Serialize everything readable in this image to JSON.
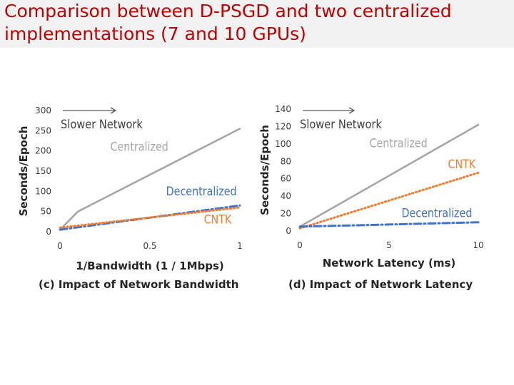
{
  "slide": {
    "title": "Comparison between D-PSGD and two centralized implementations (7 and 10 GPUs)"
  },
  "chart_data": [
    {
      "type": "line",
      "caption": "(c) Impact of Network Bandwidth",
      "xlabel": "1/Bandwidth (1 / 1Mbps)",
      "ylabel": "Seconds/Epoch",
      "xlim": [
        0,
        1
      ],
      "ylim": [
        0,
        300
      ],
      "xticks": [
        0,
        0.5,
        1
      ],
      "xtick_labels": [
        "0",
        "0.5",
        "1"
      ],
      "yticks": [
        0,
        50,
        100,
        150,
        200,
        250,
        300
      ],
      "annotation": "Slower Network",
      "series": [
        {
          "name": "Centralized",
          "color": "#a6a6a6",
          "dash": "solid",
          "x": [
            0,
            0.1,
            1
          ],
          "y": [
            5,
            50,
            255
          ]
        },
        {
          "name": "Decentralized",
          "color": "#4472c4",
          "dash": "dashdot",
          "x": [
            0,
            0.5,
            1
          ],
          "y": [
            5,
            35,
            65
          ]
        },
        {
          "name": "CNTK",
          "color": "#ed7d31",
          "dash": "dotted",
          "x": [
            0,
            0.5,
            1
          ],
          "y": [
            10,
            35,
            60
          ]
        }
      ],
      "labels": [
        {
          "text": "Centralized",
          "series": 0,
          "x": 0.28,
          "y": 200
        },
        {
          "text": "Decentralized",
          "series": 1,
          "x": 0.59,
          "y": 90
        },
        {
          "text": "CNTK",
          "series": 2,
          "x": 0.8,
          "y": 20
        }
      ]
    },
    {
      "type": "line",
      "caption": "(d) Impact of Network Latency",
      "xlabel": "Network Latency (ms)",
      "ylabel": "Seconds/Epoch",
      "xlim": [
        0,
        10
      ],
      "ylim": [
        0,
        140
      ],
      "xticks": [
        0,
        5,
        10
      ],
      "xtick_labels": [
        "0",
        "5",
        "10"
      ],
      "yticks": [
        0,
        20,
        40,
        60,
        80,
        100,
        120,
        140
      ],
      "annotation": "Slower Network",
      "series": [
        {
          "name": "Centralized",
          "color": "#a6a6a6",
          "dash": "solid",
          "x": [
            0,
            10
          ],
          "y": [
            5,
            122
          ]
        },
        {
          "name": "CNTK",
          "color": "#ed7d31",
          "dash": "dotted",
          "x": [
            0,
            10
          ],
          "y": [
            3,
            67
          ]
        },
        {
          "name": "Decentralized",
          "color": "#4472c4",
          "dash": "dashdot",
          "x": [
            0,
            10
          ],
          "y": [
            5,
            10
          ]
        }
      ],
      "labels": [
        {
          "text": "Centralized",
          "series": 0,
          "x": 3.9,
          "y": 96
        },
        {
          "text": "CNTK",
          "series": 1,
          "x": 8.3,
          "y": 72
        },
        {
          "text": "Decentralized",
          "series": 2,
          "x": 5.7,
          "y": 16
        }
      ]
    }
  ]
}
